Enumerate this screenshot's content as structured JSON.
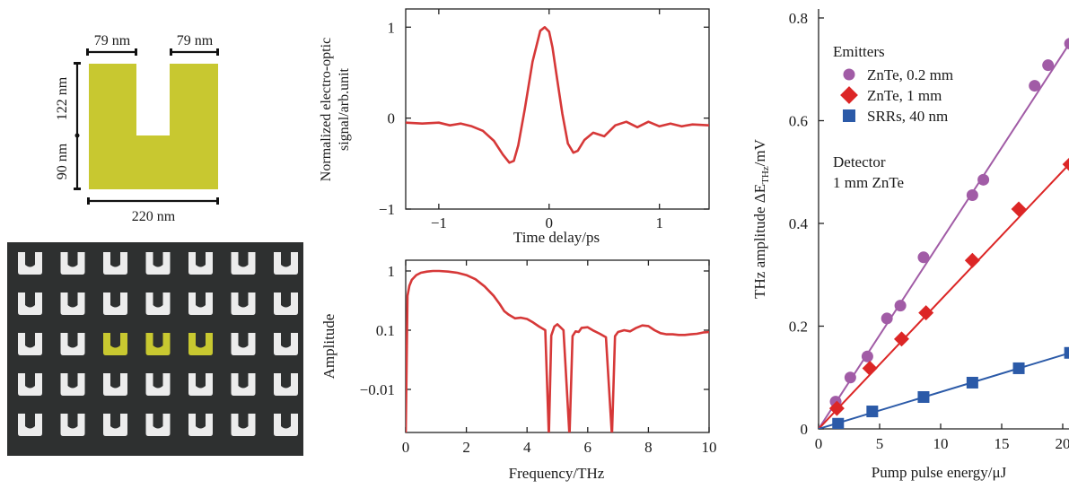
{
  "colors": {
    "gold": "#c8c830",
    "red_curve": "#d63838",
    "purple": "#a15ca6",
    "red": "#dc2626",
    "blue": "#2b5aa8",
    "sem_bg": "#2e3030",
    "sem_u": "#ececec"
  },
  "schematic": {
    "top_left_dim": "79 nm",
    "top_right_dim": "79 nm",
    "left_outer_dim": "90 nm",
    "left_inner_dim": "122 nm",
    "bottom_dim": "220 nm"
  },
  "sem": {
    "rows": 5,
    "cols": 7,
    "highlight_row": 2,
    "highlight_cols": [
      2,
      3,
      4
    ]
  },
  "chart_data": [
    {
      "type": "line",
      "xlabel": "Time delay/ps",
      "ylabel_lines": [
        "Normalized electro-optic",
        "signal/arb.unit"
      ],
      "xlim": [
        -1.3,
        1.45
      ],
      "ylim": [
        -1,
        1.2
      ],
      "xticks": [
        -1,
        0,
        1
      ],
      "xtick_labels": [
        "−1",
        "0",
        "1"
      ],
      "yticks": [
        -1,
        0,
        1
      ],
      "ytick_labels": [
        "−1",
        "0",
        "1"
      ],
      "series": [
        {
          "x": [
            -1.3,
            -1.15,
            -1.0,
            -0.9,
            -0.8,
            -0.7,
            -0.6,
            -0.5,
            -0.42,
            -0.36,
            -0.32,
            -0.28,
            -0.22,
            -0.15,
            -0.08,
            -0.04,
            0.0,
            0.03,
            0.07,
            0.12,
            0.17,
            0.22,
            0.26,
            0.32,
            0.4,
            0.5,
            0.6,
            0.7,
            0.8,
            0.9,
            1.0,
            1.1,
            1.2,
            1.3,
            1.45
          ],
          "y": [
            -0.05,
            -0.06,
            -0.05,
            -0.08,
            -0.06,
            -0.09,
            -0.14,
            -0.25,
            -0.4,
            -0.49,
            -0.47,
            -0.3,
            0.1,
            0.62,
            0.96,
            1.0,
            0.95,
            0.78,
            0.45,
            0.05,
            -0.28,
            -0.38,
            -0.36,
            -0.24,
            -0.16,
            -0.2,
            -0.08,
            -0.04,
            -0.1,
            -0.04,
            -0.09,
            -0.06,
            -0.09,
            -0.07,
            -0.08
          ]
        }
      ]
    },
    {
      "type": "line",
      "xlabel": "Frequency/THz",
      "ylabel": "Amplitude",
      "xlim": [
        0,
        10
      ],
      "xticks": [
        0,
        2,
        4,
        6,
        8,
        10
      ],
      "xtick_labels": [
        "0",
        "2",
        "4",
        "6",
        "8",
        "10"
      ],
      "ytick_labels": [
        "1",
        "0.1",
        "−0.01"
      ],
      "series": [
        {
          "x": [
            0.0,
            0.06,
            0.12,
            0.2,
            0.35,
            0.5,
            0.7,
            0.9,
            1.1,
            1.4,
            1.7,
            2.0,
            2.3,
            2.6,
            2.9,
            3.1,
            3.25,
            3.4,
            3.6,
            3.8,
            4.0,
            4.2,
            4.4,
            4.6,
            4.72,
            4.8,
            4.9,
            5.0,
            5.1,
            5.2,
            5.4,
            5.5,
            5.6,
            5.7,
            5.8,
            6.0,
            6.2,
            6.4,
            6.6,
            6.8,
            6.9,
            7.0,
            7.2,
            7.4,
            7.6,
            7.8,
            8.0,
            8.2,
            8.4,
            8.6,
            8.8,
            9.0,
            9.2,
            9.4,
            9.6,
            9.8,
            10.0
          ],
          "y_display": [
            0.0,
            0.58,
            0.75,
            0.85,
            0.93,
            0.97,
            0.99,
            1.0,
            1.0,
            0.99,
            0.97,
            0.93,
            0.86,
            0.74,
            0.58,
            0.44,
            0.32,
            0.26,
            0.2,
            0.21,
            0.19,
            0.13,
            0.06,
            0.0,
            -0.32,
            -0.09,
            0.06,
            0.1,
            0.05,
            0.0,
            -0.22,
            -0.1,
            -0.02,
            -0.03,
            0.04,
            0.05,
            -0.01,
            -0.06,
            -0.12,
            -0.15,
            -0.1,
            -0.03,
            0.0,
            -0.02,
            0.04,
            0.08,
            0.07,
            0.0,
            -0.05,
            -0.07,
            -0.07,
            -0.08,
            -0.08,
            -0.07,
            -0.06,
            -0.04,
            -0.03
          ]
        }
      ]
    },
    {
      "type": "scatter",
      "xlabel": "Pump pulse energy/μJ",
      "ylabel": "THz amplitude ΔE",
      "ylabel_sub": "THz",
      "ylabel_unit": "/mV",
      "xlim": [
        0,
        21
      ],
      "ylim": [
        0,
        0.8
      ],
      "xticks": [
        0,
        5,
        10,
        15,
        20
      ],
      "xtick_labels": [
        "0",
        "5",
        "10",
        "15",
        "20"
      ],
      "yticks": [
        0,
        0.2,
        0.4,
        0.6,
        0.8
      ],
      "ytick_labels": [
        "0",
        "0.2",
        "0.4",
        "0.6",
        "0.8"
      ],
      "legend_title": "Emitters",
      "detector_label_lines": [
        "Detector",
        "1 mm ZnTe"
      ],
      "series": [
        {
          "name": "ZnTe, 0.2 mm",
          "marker": "circle",
          "color": "#a15ca6",
          "x": [
            1.4,
            2.6,
            4.0,
            5.6,
            6.7,
            8.6,
            12.6,
            13.5,
            17.7,
            18.8,
            20.6
          ],
          "y": [
            0.053,
            0.1,
            0.141,
            0.215,
            0.24,
            0.334,
            0.455,
            0.485,
            0.668,
            0.708,
            0.75
          ],
          "fit_end": [
            20.6,
            0.752
          ]
        },
        {
          "name": "ZnTe, 1 mm",
          "marker": "diamond",
          "color": "#dc2626",
          "x": [
            1.5,
            4.2,
            6.8,
            8.8,
            12.6,
            16.4,
            20.6
          ],
          "y": [
            0.04,
            0.118,
            0.175,
            0.226,
            0.328,
            0.428,
            0.515
          ],
          "fit_end": [
            20.6,
            0.517
          ]
        },
        {
          "name": "SRRs, 40 nm",
          "marker": "square",
          "color": "#2b5aa8",
          "x": [
            1.6,
            4.4,
            8.6,
            12.6,
            16.4,
            20.6
          ],
          "y": [
            0.01,
            0.034,
            0.062,
            0.09,
            0.118,
            0.148
          ],
          "fit_end": [
            20.6,
            0.148
          ]
        }
      ]
    }
  ]
}
